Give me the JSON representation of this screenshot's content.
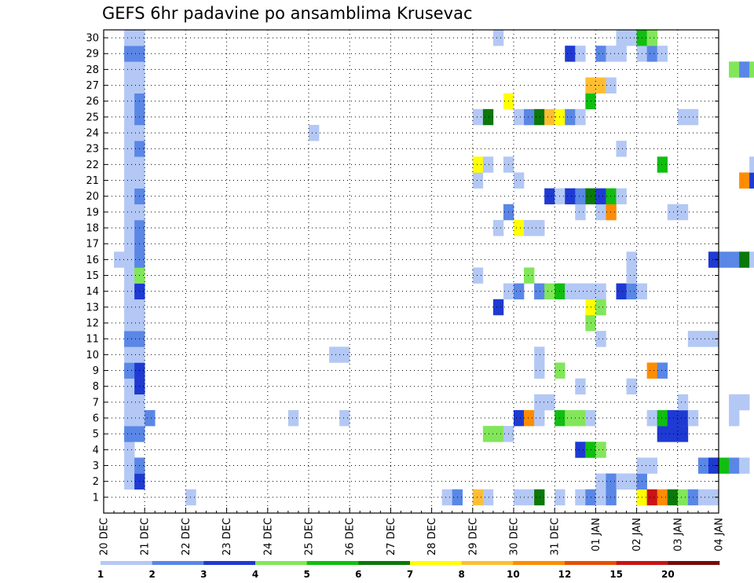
{
  "chart_data": {
    "type": "heatmap",
    "title": "GEFS 6hr padavine po ansamblima Krusevac",
    "x_ticks": [
      "20 DEC",
      "21 DEC",
      "22 DEC",
      "23 DEC",
      "24 DEC",
      "25 DEC",
      "26 DEC",
      "27 DEC",
      "28 DEC",
      "29 DEC",
      "30 DEC",
      "31 DEC",
      "01 JAN",
      "02 JAN",
      "03 JAN",
      "04 JAN"
    ],
    "y_ticks": [
      1,
      2,
      3,
      4,
      5,
      6,
      7,
      8,
      9,
      10,
      11,
      12,
      13,
      14,
      15,
      16,
      17,
      18,
      19,
      20,
      21,
      22,
      23,
      24,
      25,
      26,
      27,
      28,
      29,
      30
    ],
    "x_unit": "6-hour steps",
    "y_unit": "ensemble member",
    "grid": true,
    "legend": {
      "placement": "bottom",
      "labels": [
        "1",
        "2",
        "3",
        "4",
        "5",
        "6",
        "7",
        "8",
        "10",
        "12",
        "15",
        "20"
      ],
      "colors": [
        "#b4c8f5",
        "#5a87e6",
        "#1e3ad2",
        "#82e65a",
        "#10be10",
        "#0a780a",
        "#ffff00",
        "#ffbe32",
        "#ff8c00",
        "#e65000",
        "#c81414",
        "#780a0a"
      ]
    },
    "cells_note": "Each cell: [member, step, category index into legend colors]",
    "cells": [
      [
        1,
        8,
        0
      ],
      [
        1,
        33,
        0
      ],
      [
        1,
        34,
        1
      ],
      [
        1,
        36,
        7
      ],
      [
        1,
        37,
        0
      ],
      [
        1,
        40,
        0
      ],
      [
        1,
        41,
        0
      ],
      [
        1,
        42,
        5
      ],
      [
        1,
        44,
        0
      ],
      [
        1,
        46,
        0
      ],
      [
        1,
        47,
        1
      ],
      [
        1,
        48,
        0
      ],
      [
        1,
        49,
        1
      ],
      [
        1,
        52,
        6
      ],
      [
        1,
        53,
        10
      ],
      [
        1,
        54,
        8
      ],
      [
        1,
        55,
        5
      ],
      [
        1,
        56,
        3
      ],
      [
        1,
        57,
        1
      ],
      [
        1,
        58,
        0
      ],
      [
        1,
        59,
        0
      ],
      [
        2,
        2,
        0
      ],
      [
        2,
        3,
        2
      ],
      [
        2,
        48,
        0
      ],
      [
        2,
        49,
        1
      ],
      [
        2,
        50,
        0
      ],
      [
        2,
        51,
        0
      ],
      [
        2,
        52,
        1
      ],
      [
        3,
        2,
        0
      ],
      [
        3,
        3,
        1
      ],
      [
        3,
        52,
        0
      ],
      [
        3,
        53,
        0
      ],
      [
        3,
        58,
        1
      ],
      [
        3,
        59,
        2
      ],
      [
        3,
        60,
        4
      ],
      [
        3,
        61,
        1
      ],
      [
        3,
        62,
        0
      ],
      [
        4,
        2,
        0
      ],
      [
        4,
        46,
        2
      ],
      [
        4,
        47,
        4
      ],
      [
        4,
        48,
        3
      ],
      [
        5,
        2,
        1
      ],
      [
        5,
        3,
        1
      ],
      [
        5,
        37,
        3
      ],
      [
        5,
        38,
        3
      ],
      [
        5,
        39,
        0
      ],
      [
        5,
        54,
        2
      ],
      [
        5,
        55,
        2
      ],
      [
        5,
        56,
        2
      ],
      [
        6,
        2,
        0
      ],
      [
        6,
        3,
        0
      ],
      [
        6,
        4,
        1
      ],
      [
        6,
        18,
        0
      ],
      [
        6,
        23,
        0
      ],
      [
        6,
        40,
        2
      ],
      [
        6,
        41,
        8
      ],
      [
        6,
        42,
        0
      ],
      [
        6,
        44,
        4
      ],
      [
        6,
        45,
        3
      ],
      [
        6,
        46,
        3
      ],
      [
        6,
        47,
        0
      ],
      [
        6,
        53,
        0
      ],
      [
        6,
        54,
        4
      ],
      [
        6,
        55,
        2
      ],
      [
        6,
        56,
        2
      ],
      [
        6,
        57,
        0
      ],
      [
        6,
        61,
        0
      ],
      [
        7,
        2,
        0
      ],
      [
        7,
        3,
        0
      ],
      [
        7,
        42,
        0
      ],
      [
        7,
        43,
        0
      ],
      [
        7,
        56,
        0
      ],
      [
        7,
        61,
        0
      ],
      [
        7,
        62,
        0
      ],
      [
        8,
        2,
        0
      ],
      [
        8,
        3,
        2
      ],
      [
        8,
        46,
        0
      ],
      [
        8,
        51,
        0
      ],
      [
        9,
        2,
        1
      ],
      [
        9,
        3,
        2
      ],
      [
        9,
        42,
        0
      ],
      [
        9,
        44,
        3
      ],
      [
        9,
        53,
        8
      ],
      [
        9,
        54,
        1
      ],
      [
        10,
        2,
        0
      ],
      [
        10,
        3,
        0
      ],
      [
        10,
        22,
        0
      ],
      [
        10,
        23,
        0
      ],
      [
        10,
        42,
        0
      ],
      [
        11,
        2,
        1
      ],
      [
        11,
        3,
        1
      ],
      [
        11,
        48,
        0
      ],
      [
        11,
        57,
        0
      ],
      [
        11,
        58,
        0
      ],
      [
        11,
        59,
        0
      ],
      [
        11,
        69,
        0
      ],
      [
        12,
        2,
        0
      ],
      [
        12,
        3,
        0
      ],
      [
        12,
        47,
        3
      ],
      [
        12,
        67,
        1
      ],
      [
        12,
        68,
        0
      ],
      [
        13,
        2,
        0
      ],
      [
        13,
        3,
        0
      ],
      [
        13,
        38,
        2
      ],
      [
        13,
        47,
        6
      ],
      [
        13,
        48,
        3
      ],
      [
        13,
        64,
        4
      ],
      [
        13,
        65,
        6
      ],
      [
        13,
        66,
        1
      ],
      [
        13,
        67,
        2
      ],
      [
        13,
        68,
        0
      ],
      [
        14,
        2,
        0
      ],
      [
        14,
        3,
        2
      ],
      [
        14,
        39,
        0
      ],
      [
        14,
        40,
        1
      ],
      [
        14,
        42,
        1
      ],
      [
        14,
        43,
        3
      ],
      [
        14,
        44,
        4
      ],
      [
        14,
        45,
        0
      ],
      [
        14,
        46,
        0
      ],
      [
        14,
        47,
        0
      ],
      [
        14,
        48,
        0
      ],
      [
        14,
        50,
        2
      ],
      [
        14,
        51,
        1
      ],
      [
        14,
        52,
        0
      ],
      [
        14,
        66,
        0
      ],
      [
        15,
        2,
        0
      ],
      [
        15,
        3,
        3
      ],
      [
        15,
        36,
        0
      ],
      [
        15,
        41,
        3
      ],
      [
        15,
        51,
        0
      ],
      [
        16,
        1,
        0
      ],
      [
        16,
        2,
        0
      ],
      [
        16,
        3,
        1
      ],
      [
        16,
        51,
        0
      ],
      [
        16,
        59,
        2
      ],
      [
        16,
        60,
        1
      ],
      [
        16,
        61,
        1
      ],
      [
        16,
        62,
        5
      ],
      [
        16,
        63,
        0
      ],
      [
        17,
        2,
        0
      ],
      [
        17,
        3,
        1
      ],
      [
        18,
        2,
        0
      ],
      [
        18,
        3,
        1
      ],
      [
        18,
        38,
        0
      ],
      [
        18,
        40,
        6
      ],
      [
        18,
        41,
        0
      ],
      [
        18,
        42,
        0
      ],
      [
        19,
        2,
        0
      ],
      [
        19,
        3,
        0
      ],
      [
        19,
        39,
        1
      ],
      [
        19,
        46,
        0
      ],
      [
        19,
        48,
        0
      ],
      [
        19,
        49,
        8
      ],
      [
        19,
        55,
        0
      ],
      [
        19,
        56,
        0
      ],
      [
        19,
        69,
        0
      ],
      [
        20,
        2,
        0
      ],
      [
        20,
        3,
        1
      ],
      [
        20,
        43,
        2
      ],
      [
        20,
        44,
        0
      ],
      [
        20,
        45,
        2
      ],
      [
        20,
        46,
        1
      ],
      [
        20,
        47,
        5
      ],
      [
        20,
        48,
        2
      ],
      [
        20,
        49,
        4
      ],
      [
        20,
        50,
        0
      ],
      [
        21,
        2,
        0
      ],
      [
        21,
        3,
        0
      ],
      [
        21,
        36,
        0
      ],
      [
        21,
        40,
        0
      ],
      [
        21,
        62,
        8
      ],
      [
        21,
        63,
        2
      ],
      [
        22,
        2,
        0
      ],
      [
        22,
        3,
        0
      ],
      [
        22,
        36,
        6
      ],
      [
        22,
        37,
        0
      ],
      [
        22,
        39,
        0
      ],
      [
        22,
        54,
        4
      ],
      [
        22,
        63,
        0
      ],
      [
        23,
        2,
        0
      ],
      [
        23,
        3,
        1
      ],
      [
        23,
        50,
        0
      ],
      [
        24,
        2,
        0
      ],
      [
        24,
        3,
        0
      ],
      [
        24,
        20,
        0
      ],
      [
        25,
        2,
        0
      ],
      [
        25,
        3,
        1
      ],
      [
        25,
        36,
        0
      ],
      [
        25,
        37,
        5
      ],
      [
        25,
        40,
        0
      ],
      [
        25,
        41,
        1
      ],
      [
        25,
        42,
        5
      ],
      [
        25,
        43,
        7
      ],
      [
        25,
        44,
        6
      ],
      [
        25,
        45,
        1
      ],
      [
        25,
        46,
        0
      ],
      [
        25,
        56,
        0
      ],
      [
        25,
        57,
        0
      ],
      [
        26,
        2,
        0
      ],
      [
        26,
        3,
        1
      ],
      [
        26,
        39,
        6
      ],
      [
        26,
        47,
        4
      ],
      [
        27,
        2,
        0
      ],
      [
        27,
        3,
        0
      ],
      [
        27,
        47,
        7
      ],
      [
        27,
        48,
        7
      ],
      [
        27,
        49,
        0
      ],
      [
        28,
        2,
        0
      ],
      [
        28,
        3,
        0
      ],
      [
        28,
        61,
        3
      ],
      [
        28,
        62,
        1
      ],
      [
        28,
        63,
        3
      ],
      [
        28,
        64,
        0
      ],
      [
        28,
        65,
        0
      ],
      [
        29,
        2,
        1
      ],
      [
        29,
        3,
        1
      ],
      [
        29,
        45,
        2
      ],
      [
        29,
        46,
        0
      ],
      [
        29,
        48,
        1
      ],
      [
        29,
        49,
        0
      ],
      [
        29,
        50,
        0
      ],
      [
        29,
        52,
        0
      ],
      [
        29,
        53,
        1
      ],
      [
        29,
        54,
        0
      ],
      [
        29,
        68,
        3
      ],
      [
        30,
        2,
        0
      ],
      [
        30,
        3,
        0
      ],
      [
        30,
        38,
        0
      ],
      [
        30,
        50,
        0
      ],
      [
        30,
        51,
        0
      ],
      [
        30,
        52,
        4
      ],
      [
        30,
        53,
        3
      ]
    ]
  }
}
